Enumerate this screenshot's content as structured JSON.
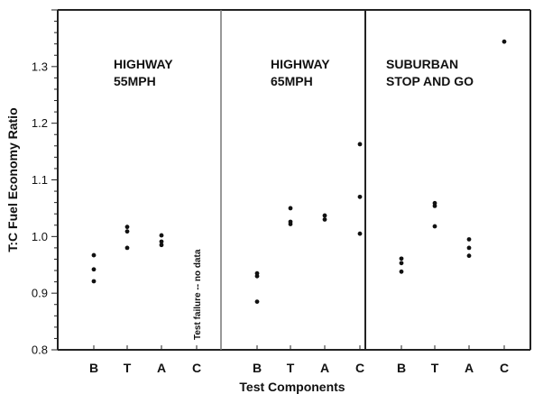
{
  "chart_data": {
    "type": "scatter",
    "xlabel": "Test Components",
    "ylabel": "T:C Fuel Economy Ratio",
    "ylim": [
      0.8,
      1.4
    ],
    "yticks": [
      "0.8",
      "0.9",
      "1.0",
      "1.1",
      "1.2",
      "1.3"
    ],
    "grid": false,
    "panels": [
      {
        "title_lines": [
          "HIGHWAY",
          "55MPH"
        ],
        "categories": [
          "B",
          "T",
          "A",
          "C"
        ],
        "points": [
          {
            "category": "B",
            "values": [
              0.967,
              0.942,
              0.921
            ]
          },
          {
            "category": "T",
            "values": [
              1.017,
              1.009,
              0.98
            ]
          },
          {
            "category": "A",
            "values": [
              1.002,
              0.991,
              0.985
            ]
          },
          {
            "category": "C",
            "values": []
          }
        ],
        "note": "Test failure -- no data"
      },
      {
        "title_lines": [
          "HIGHWAY",
          "65MPH"
        ],
        "categories": [
          "B",
          "T",
          "A",
          "C"
        ],
        "points": [
          {
            "category": "B",
            "values": [
              0.935,
              0.93,
              0.885
            ]
          },
          {
            "category": "T",
            "values": [
              1.05,
              1.026,
              1.022
            ]
          },
          {
            "category": "A",
            "values": [
              1.037,
              1.03
            ]
          },
          {
            "category": "C",
            "values": [
              1.163,
              1.07,
              1.005
            ]
          }
        ]
      },
      {
        "title_lines": [
          "SUBURBAN",
          "STOP AND GO"
        ],
        "categories": [
          "B",
          "T",
          "A",
          "C"
        ],
        "points": [
          {
            "category": "B",
            "values": [
              0.961,
              0.953,
              0.938
            ]
          },
          {
            "category": "T",
            "values": [
              1.059,
              1.054,
              1.018
            ]
          },
          {
            "category": "A",
            "values": [
              0.995,
              0.98,
              0.966
            ]
          },
          {
            "category": "C",
            "values": [
              1.344
            ]
          }
        ]
      }
    ]
  }
}
